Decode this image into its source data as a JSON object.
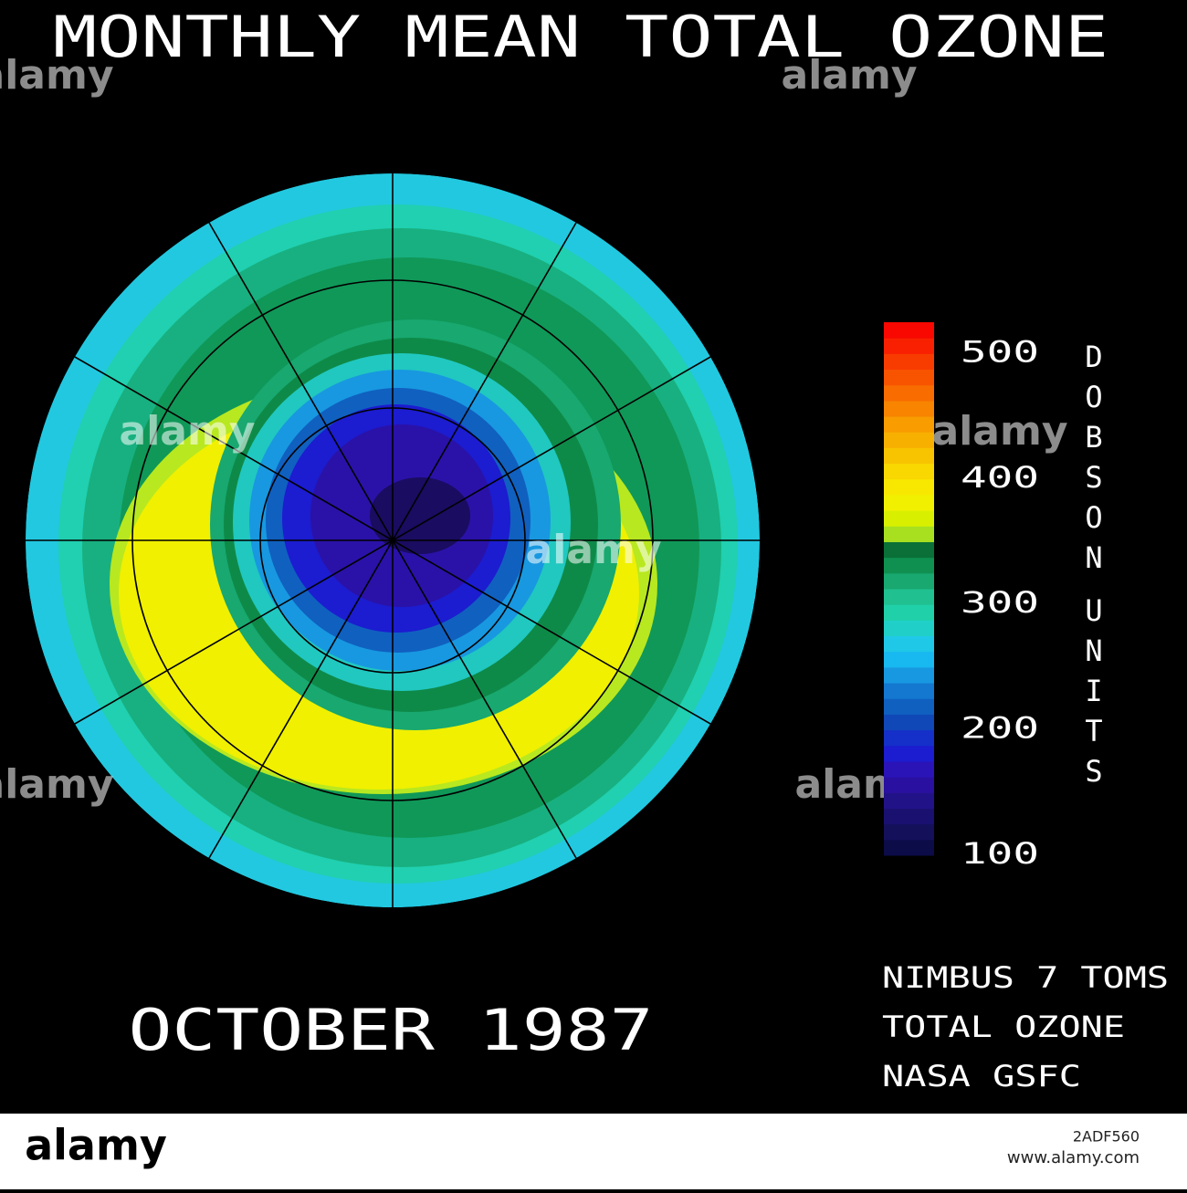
{
  "title": "MONTHLY MEAN TOTAL OZONE",
  "date": "OCTOBER 1987",
  "colorbar": {
    "label_top": "DOBSON",
    "label_bottom": "UNITS",
    "range": [
      100,
      525
    ],
    "ticks": [
      100,
      200,
      300,
      400,
      500
    ],
    "colors": [
      "#0c0c48",
      "#14105a",
      "#1a1070",
      "#221288",
      "#2a10a0",
      "#2a14b8",
      "#1c1cd0",
      "#1430c8",
      "#1048b8",
      "#1060c0",
      "#1478d0",
      "#1898e0",
      "#18b8f0",
      "#20c8e8",
      "#20d0c8",
      "#20d0a8",
      "#20c090",
      "#18a870",
      "#109050",
      "#0a7038",
      "#a8e020",
      "#d8f000",
      "#f0f000",
      "#f8e800",
      "#f8d800",
      "#f8c400",
      "#f8b000",
      "#f89c00",
      "#f88400",
      "#f86c00",
      "#f85400",
      "#f83c00",
      "#f82000",
      "#f80800"
    ]
  },
  "credits": [
    "NIMBUS 7 TOMS",
    "TOTAL OZONE",
    "NASA GSFC"
  ],
  "watermark": "alamy",
  "image_id": "2ADF560",
  "site": "www.alamy.com"
}
